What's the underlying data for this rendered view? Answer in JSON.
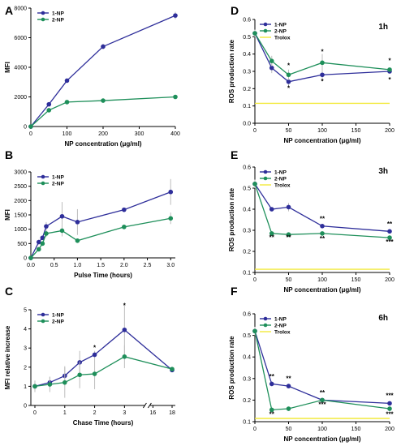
{
  "colors": {
    "np1": "#2e2e9a",
    "np2": "#1e8f5a",
    "trolox": "#f2ea3c",
    "err": "#bdbdbd"
  },
  "chart_data": [
    {
      "id": "A",
      "type": "line",
      "letter": "A",
      "xlabel": "NP concentration (μg/ml)",
      "ylabel": "MFI",
      "x": [
        0,
        50,
        100,
        200,
        400
      ],
      "xlim": [
        0,
        400
      ],
      "ylim": [
        0,
        8000
      ],
      "xticks": [
        0,
        100,
        200,
        300,
        400
      ],
      "yticks": [
        0,
        2000,
        4000,
        6000,
        8000
      ],
      "legend": [
        "1-NP",
        "2-NP"
      ],
      "series": [
        {
          "name": "1-NP",
          "values": [
            0,
            1500,
            3100,
            5400,
            7500
          ],
          "err": [
            0,
            120,
            120,
            180,
            250
          ]
        },
        {
          "name": "2-NP",
          "values": [
            0,
            1100,
            1650,
            1750,
            2000
          ],
          "err": [
            0,
            60,
            60,
            60,
            60
          ]
        }
      ]
    },
    {
      "id": "B",
      "type": "line",
      "letter": "B",
      "xlabel": "Pulse Time (hours)",
      "ylabel": "MFI",
      "x": [
        0,
        0.17,
        0.25,
        0.33,
        0.67,
        1,
        2,
        3
      ],
      "xlim": [
        0,
        3.1
      ],
      "ylim": [
        0,
        3000
      ],
      "xticks": [
        0.0,
        0.5,
        1.0,
        1.5,
        2.0,
        2.5,
        3.0
      ],
      "xtick_labels": [
        "0.0",
        "0.5",
        "1.0",
        "1.5",
        "2.0",
        "2.5",
        "3.0"
      ],
      "yticks": [
        0,
        500,
        1000,
        1500,
        2000,
        2500,
        3000
      ],
      "legend": [
        "1-NP",
        "2-NP"
      ],
      "series": [
        {
          "name": "1-NP",
          "values": [
            0,
            550,
            700,
            1100,
            1450,
            1250,
            1680,
            2300
          ],
          "err": [
            0,
            80,
            80,
            150,
            500,
            450,
            60,
            450
          ]
        },
        {
          "name": "2-NP",
          "values": [
            0,
            300,
            500,
            850,
            950,
            600,
            1080,
            1380
          ],
          "err": [
            0,
            50,
            80,
            120,
            200,
            60,
            80,
            200
          ]
        }
      ]
    },
    {
      "id": "C",
      "type": "line",
      "letter": "C",
      "xlabel": "Chase Time (hours)",
      "ylabel": "MFI relative increase",
      "x": [
        0,
        0.5,
        1,
        1.5,
        2,
        3,
        18
      ],
      "xlim": [
        0,
        18
      ],
      "ylim": [
        0,
        5
      ],
      "xticks": [
        0,
        1,
        2,
        3,
        16,
        18
      ],
      "xtick_labels": [
        "0",
        "1",
        "2",
        "3",
        "16",
        "18"
      ],
      "yticks": [
        0,
        1,
        2,
        3,
        4,
        5
      ],
      "legend": [
        "1-NP",
        "2-NP"
      ],
      "annotations": [
        {
          "x": 2,
          "y": 2.9,
          "text": "*"
        },
        {
          "x": 3,
          "y": 5.1,
          "text": "*"
        }
      ],
      "series": [
        {
          "name": "1-NP",
          "values": [
            1.0,
            1.2,
            1.55,
            2.25,
            2.65,
            3.95,
            1.85
          ],
          "err": [
            0.3,
            0.3,
            0.5,
            0.6,
            0.2,
            1.3,
            0.1
          ]
        },
        {
          "name": "2-NP",
          "values": [
            1.0,
            1.1,
            1.2,
            1.6,
            1.65,
            2.55,
            1.9
          ],
          "err": [
            0.3,
            0.4,
            0.8,
            0.7,
            0.8,
            0.6,
            0.1
          ]
        }
      ]
    },
    {
      "id": "D",
      "type": "line",
      "letter": "D",
      "time": "1h",
      "xlabel": "NP concentration (μg/ml)",
      "ylabel": "ROS production rate",
      "x": [
        0,
        25,
        50,
        100,
        200
      ],
      "xlim": [
        0,
        200
      ],
      "ylim": [
        0,
        0.6
      ],
      "xticks": [
        0,
        50,
        100,
        150,
        200
      ],
      "yticks": [
        0.0,
        0.1,
        0.2,
        0.3,
        0.4,
        0.5,
        0.6
      ],
      "ytick_labels": [
        "0.0",
        "0.1",
        "0.2",
        "0.3",
        "0.4",
        "0.5",
        "0.6"
      ],
      "trolox": 0.115,
      "legend": [
        "1-NP",
        "2-NP",
        "Trolox"
      ],
      "annotations": [
        {
          "x": 50,
          "y": 0.32,
          "text": "*"
        },
        {
          "x": 50,
          "y": 0.19,
          "text": "*"
        },
        {
          "x": 100,
          "y": 0.4,
          "text": "*"
        },
        {
          "x": 100,
          "y": 0.23,
          "text": "*"
        },
        {
          "x": 200,
          "y": 0.35,
          "text": "*"
        },
        {
          "x": 200,
          "y": 0.24,
          "text": "*"
        }
      ],
      "series": [
        {
          "name": "1-NP",
          "values": [
            0.52,
            0.32,
            0.24,
            0.28,
            0.3
          ],
          "err": [
            0.02,
            0.03,
            0.03,
            0.04,
            0.01
          ]
        },
        {
          "name": "2-NP",
          "values": [
            0.52,
            0.36,
            0.28,
            0.35,
            0.31
          ],
          "err": [
            0.02,
            0.03,
            0.03,
            0.05,
            0.01
          ]
        }
      ]
    },
    {
      "id": "E",
      "type": "line",
      "letter": "E",
      "time": "3h",
      "xlabel": "NP concentration (μg/ml)",
      "ylabel": "ROS production rate",
      "x": [
        0,
        25,
        50,
        100,
        200
      ],
      "xlim": [
        0,
        200
      ],
      "ylim": [
        0.1,
        0.6
      ],
      "xticks": [
        0,
        50,
        100,
        150,
        200
      ],
      "yticks": [
        0.1,
        0.2,
        0.3,
        0.4,
        0.5,
        0.6
      ],
      "ytick_labels": [
        "0.1",
        "0.2",
        "0.3",
        "0.4",
        "0.5",
        "0.6"
      ],
      "trolox": 0.115,
      "legend": [
        "1-NP",
        "2-NP",
        "Trolox"
      ],
      "annotations": [
        {
          "x": 25,
          "y": 0.255,
          "text": "**"
        },
        {
          "x": 50,
          "y": 0.255,
          "text": "**"
        },
        {
          "x": 100,
          "y": 0.345,
          "text": "**"
        },
        {
          "x": 100,
          "y": 0.25,
          "text": "**"
        },
        {
          "x": 200,
          "y": 0.32,
          "text": "**"
        },
        {
          "x": 200,
          "y": 0.235,
          "text": "***"
        }
      ],
      "series": [
        {
          "name": "1-NP",
          "values": [
            0.52,
            0.4,
            0.41,
            0.32,
            0.295
          ],
          "err": [
            0.02,
            0.01,
            0.02,
            0.01,
            0.01
          ]
        },
        {
          "name": "2-NP",
          "values": [
            0.52,
            0.285,
            0.28,
            0.285,
            0.265
          ],
          "err": [
            0.02,
            0.01,
            0.01,
            0.01,
            0.01
          ]
        }
      ]
    },
    {
      "id": "F",
      "type": "line",
      "letter": "F",
      "time": "6h",
      "xlabel": "NP concentration (μg/ml)",
      "ylabel": "ROS production rate",
      "x": [
        0,
        25,
        50,
        100,
        200
      ],
      "xlim": [
        0,
        200
      ],
      "ylim": [
        0.1,
        0.6
      ],
      "xticks": [
        0,
        50,
        100,
        150,
        200
      ],
      "yticks": [
        0.1,
        0.2,
        0.3,
        0.4,
        0.5,
        0.6
      ],
      "ytick_labels": [
        "0.1",
        "0.2",
        "0.3",
        "0.4",
        "0.5",
        "0.6"
      ],
      "trolox": 0.115,
      "legend": [
        "1-NP",
        "2-NP",
        "Trolox"
      ],
      "annotations": [
        {
          "x": 25,
          "y": 0.3,
          "text": "**"
        },
        {
          "x": 25,
          "y": 0.125,
          "text": "**"
        },
        {
          "x": 50,
          "y": 0.29,
          "text": "**"
        },
        {
          "x": 100,
          "y": 0.225,
          "text": "**"
        },
        {
          "x": 100,
          "y": 0.17,
          "text": "***"
        },
        {
          "x": 200,
          "y": 0.21,
          "text": "***"
        },
        {
          "x": 200,
          "y": 0.125,
          "text": "***"
        }
      ],
      "series": [
        {
          "name": "1-NP",
          "values": [
            0.52,
            0.275,
            0.265,
            0.2,
            0.185
          ],
          "err": [
            0.02,
            0.01,
            0.01,
            0.01,
            0.01
          ]
        },
        {
          "name": "2-NP",
          "values": [
            0.52,
            0.155,
            0.16,
            0.2,
            0.16
          ],
          "err": [
            0.02,
            0.01,
            0.01,
            0.01,
            0.01
          ]
        }
      ]
    }
  ]
}
